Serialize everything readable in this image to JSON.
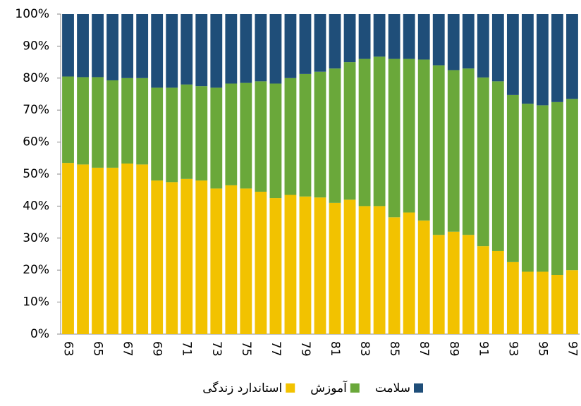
{
  "chart_data": {
    "type": "stacked_bar_percent",
    "categories": [
      "63",
      null,
      "65",
      null,
      "67",
      null,
      "69",
      null,
      "71",
      null,
      "73",
      null,
      "75",
      null,
      "77",
      null,
      "79",
      null,
      "81",
      null,
      "83",
      null,
      "85",
      null,
      "87",
      null,
      "89",
      null,
      "91",
      null,
      "93",
      null,
      "95",
      null,
      "97"
    ],
    "series": [
      {
        "name": "استاندارد زندگی",
        "color": "#f2c200",
        "values": [
          53.5,
          53,
          52,
          52,
          53.3,
          53,
          48,
          47.5,
          48.5,
          48,
          45.5,
          46.5,
          45.5,
          44.5,
          42.5,
          43.5,
          43,
          42.7,
          41,
          42,
          40,
          40,
          36.5,
          38,
          35.5,
          31,
          32,
          31,
          27.5,
          26,
          22.5,
          19.5,
          19.5,
          18.5,
          20
        ]
      },
      {
        "name": "آموزش",
        "color": "#6aa83a",
        "values": [
          27,
          27.3,
          28.3,
          27.3,
          26.7,
          27,
          29,
          29.5,
          29.5,
          29.5,
          31.5,
          31.8,
          33,
          34.5,
          35.8,
          36.5,
          38.3,
          39.3,
          42,
          43,
          46,
          46.7,
          49.5,
          48,
          50.3,
          53,
          50.5,
          52,
          52.7,
          53,
          52.2,
          52.5,
          52,
          54,
          53.5
        ]
      },
      {
        "name": "سلامت",
        "color": "#1f4e79",
        "values": [
          19.5,
          19.7,
          19.7,
          20.7,
          20,
          20,
          23,
          23,
          22,
          22.5,
          23,
          21.7,
          21.5,
          21,
          21.7,
          20,
          18.7,
          18,
          17,
          15,
          14,
          13.3,
          14,
          14,
          14.2,
          16,
          17.5,
          17,
          19.8,
          21,
          25.3,
          28,
          28.5,
          27.5,
          26.5
        ]
      }
    ],
    "ylim": [
      0,
      100
    ],
    "yticks": [
      {
        "value": 0,
        "label": "0%"
      },
      {
        "value": 10,
        "label": "10%"
      },
      {
        "value": 20,
        "label": "20%"
      },
      {
        "value": 30,
        "label": "30%"
      },
      {
        "value": 40,
        "label": "40%"
      },
      {
        "value": 50,
        "label": "50%"
      },
      {
        "value": 60,
        "label": "60%"
      },
      {
        "value": 70,
        "label": "70%"
      },
      {
        "value": 80,
        "label": "80%"
      },
      {
        "value": 90,
        "label": "90%"
      },
      {
        "value": 100,
        "label": "100%"
      }
    ],
    "legend": "bottom"
  }
}
